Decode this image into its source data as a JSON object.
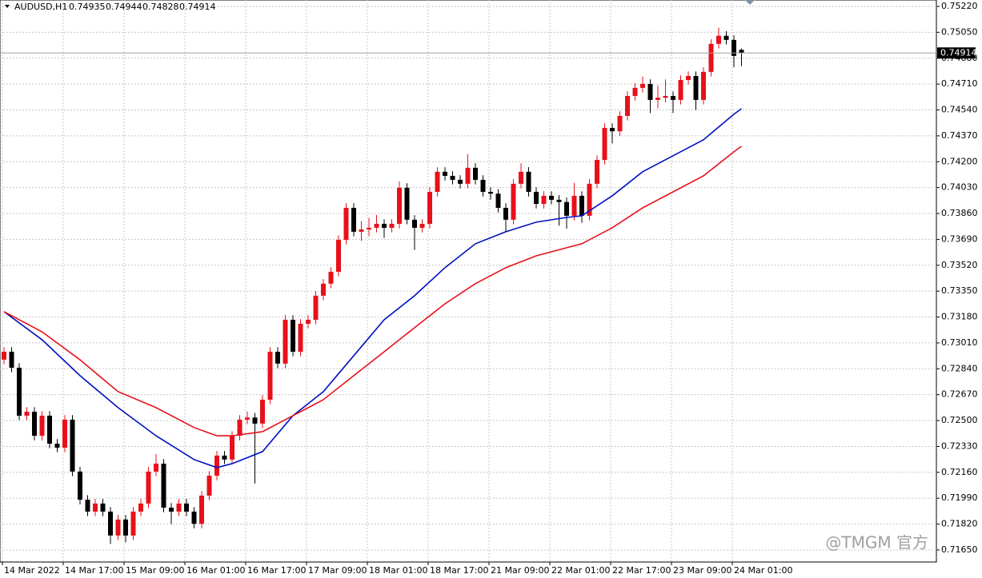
{
  "chart_data": {
    "type": "candlestick",
    "title": "AUDUSD,H1",
    "watermark": "@TMGM 官方",
    "up_color": "#e8101a",
    "down_color": "#000000",
    "grid": true,
    "ylim": [
      0.71571,
      0.75262
    ],
    "yticks": [
      {
        "value": 0.7522,
        "label": "0.75220"
      },
      {
        "value": 0.7505,
        "label": "0.75050"
      },
      {
        "value": 0.7488,
        "label": "0.74880"
      },
      {
        "value": 0.7471,
        "label": "0.74710"
      },
      {
        "value": 0.7454,
        "label": "0.74540"
      },
      {
        "value": 0.7437,
        "label": "0.74370"
      },
      {
        "value": 0.742,
        "label": "0.74200"
      },
      {
        "value": 0.7403,
        "label": "0.74030"
      },
      {
        "value": 0.7386,
        "label": "0.73860"
      },
      {
        "value": 0.7369,
        "label": "0.73690"
      },
      {
        "value": 0.7352,
        "label": "0.73520"
      },
      {
        "value": 0.7335,
        "label": "0.73350"
      },
      {
        "value": 0.7318,
        "label": "0.73180"
      },
      {
        "value": 0.7301,
        "label": "0.73010"
      },
      {
        "value": 0.7284,
        "label": "0.72840"
      },
      {
        "value": 0.7267,
        "label": "0.72670"
      },
      {
        "value": 0.725,
        "label": "0.72500"
      },
      {
        "value": 0.7233,
        "label": "0.72330"
      },
      {
        "value": 0.7216,
        "label": "0.72160"
      },
      {
        "value": 0.7199,
        "label": "0.71990"
      },
      {
        "value": 0.7182,
        "label": "0.71820"
      },
      {
        "value": 0.7165,
        "label": "0.71650"
      }
    ],
    "categories": [
      "14 Mar 2022",
      null,
      null,
      null,
      null,
      null,
      null,
      null,
      "14 Mar 17:00",
      null,
      null,
      null,
      null,
      null,
      null,
      null,
      "15 Mar 09:00",
      null,
      null,
      null,
      null,
      null,
      null,
      null,
      "16 Mar 01:00",
      null,
      null,
      null,
      null,
      null,
      null,
      null,
      "16 Mar 17:00",
      null,
      null,
      null,
      null,
      null,
      null,
      null,
      "17 Mar 09:00",
      null,
      null,
      null,
      null,
      null,
      null,
      null,
      "18 Mar 01:00",
      null,
      null,
      null,
      null,
      null,
      null,
      null,
      "18 Mar 17:00",
      null,
      null,
      null,
      null,
      null,
      null,
      null,
      "21 Mar 09:00",
      null,
      null,
      null,
      null,
      null,
      null,
      null,
      "22 Mar 01:00",
      null,
      null,
      null,
      null,
      null,
      null,
      null,
      "22 Mar 17:00",
      null,
      null,
      null,
      null,
      null,
      null,
      null,
      "23 Mar 09:00",
      null,
      null,
      null,
      null,
      null,
      null,
      null,
      "24 Mar 01:00",
      null
    ],
    "candles": [
      [
        0.729,
        0.72982,
        0.7287,
        0.72952
      ],
      [
        0.72952,
        0.72982,
        0.72817,
        0.72847
      ],
      [
        0.72847,
        0.72877,
        0.72502,
        0.72532
      ],
      [
        0.72532,
        0.72588,
        0.72502,
        0.72558
      ],
      [
        0.72558,
        0.72588,
        0.7237,
        0.724
      ],
      [
        0.724,
        0.72562,
        0.7237,
        0.72532
      ],
      [
        0.72532,
        0.72562,
        0.72318,
        0.72348
      ],
      [
        0.72348,
        0.72378,
        0.72292,
        0.72322
      ],
      [
        0.72322,
        0.72536,
        0.72292,
        0.72506
      ],
      [
        0.72506,
        0.72536,
        0.72135,
        0.72165
      ],
      [
        0.72165,
        0.72195,
        0.7195,
        0.7198
      ],
      [
        0.7198,
        0.7201,
        0.71872,
        0.71902
      ],
      [
        0.71902,
        0.71985,
        0.71872,
        0.71955
      ],
      [
        0.71955,
        0.71985,
        0.71872,
        0.71902
      ],
      [
        0.71902,
        0.71932,
        0.7169,
        0.71745
      ],
      [
        0.71745,
        0.7188,
        0.71715,
        0.7185
      ],
      [
        0.7185,
        0.7188,
        0.717,
        0.71745
      ],
      [
        0.71745,
        0.71932,
        0.71715,
        0.71902
      ],
      [
        0.71902,
        0.71985,
        0.71872,
        0.71955
      ],
      [
        0.71955,
        0.72195,
        0.71925,
        0.72165
      ],
      [
        0.72165,
        0.7228,
        0.72135,
        0.72217
      ],
      [
        0.72217,
        0.72247,
        0.71898,
        0.71928
      ],
      [
        0.71928,
        0.71958,
        0.7182,
        0.71902
      ],
      [
        0.71902,
        0.71985,
        0.71872,
        0.71955
      ],
      [
        0.71955,
        0.71985,
        0.71872,
        0.71902
      ],
      [
        0.71902,
        0.71932,
        0.71792,
        0.71822
      ],
      [
        0.71822,
        0.72037,
        0.71792,
        0.72007
      ],
      [
        0.72007,
        0.72168,
        0.71977,
        0.72138
      ],
      [
        0.72138,
        0.723,
        0.72108,
        0.7227
      ],
      [
        0.7227,
        0.723,
        0.72214,
        0.72244
      ],
      [
        0.72244,
        0.7243,
        0.72214,
        0.724
      ],
      [
        0.724,
        0.72536,
        0.7237,
        0.72506
      ],
      [
        0.72506,
        0.7256,
        0.72476,
        0.7252
      ],
      [
        0.7252,
        0.7255,
        0.72086,
        0.7248
      ],
      [
        0.7248,
        0.72667,
        0.7245,
        0.72637
      ],
      [
        0.72637,
        0.72982,
        0.72607,
        0.72952
      ],
      [
        0.72952,
        0.72982,
        0.72844,
        0.72874
      ],
      [
        0.72874,
        0.73192,
        0.72844,
        0.73162
      ],
      [
        0.73162,
        0.73192,
        0.72922,
        0.72952
      ],
      [
        0.72952,
        0.73166,
        0.72922,
        0.73136
      ],
      [
        0.73136,
        0.73192,
        0.73106,
        0.73162
      ],
      [
        0.73162,
        0.7335,
        0.73132,
        0.7332
      ],
      [
        0.7332,
        0.73429,
        0.7329,
        0.73399
      ],
      [
        0.73399,
        0.73507,
        0.73369,
        0.73477
      ],
      [
        0.73477,
        0.73717,
        0.73447,
        0.73687
      ],
      [
        0.73687,
        0.73927,
        0.73657,
        0.73897
      ],
      [
        0.73897,
        0.73927,
        0.7371,
        0.7374
      ],
      [
        0.7374,
        0.7381,
        0.7368,
        0.73755
      ],
      [
        0.73755,
        0.7383,
        0.7371,
        0.73766
      ],
      [
        0.73766,
        0.7385,
        0.73736,
        0.73792
      ],
      [
        0.73792,
        0.73822,
        0.737,
        0.73766
      ],
      [
        0.73766,
        0.73822,
        0.73736,
        0.73792
      ],
      [
        0.73792,
        0.7407,
        0.73762,
        0.74029
      ],
      [
        0.74029,
        0.74059,
        0.73789,
        0.73819
      ],
      [
        0.73819,
        0.73849,
        0.7362,
        0.73766
      ],
      [
        0.73766,
        0.73822,
        0.73736,
        0.73792
      ],
      [
        0.73792,
        0.74032,
        0.73762,
        0.74002
      ],
      [
        0.74002,
        0.74164,
        0.73972,
        0.74134
      ],
      [
        0.74134,
        0.74164,
        0.74077,
        0.74107
      ],
      [
        0.74107,
        0.74137,
        0.74051,
        0.74081
      ],
      [
        0.74081,
        0.74111,
        0.74025,
        0.74055
      ],
      [
        0.74055,
        0.7425,
        0.74025,
        0.7416
      ],
      [
        0.7416,
        0.7419,
        0.74051,
        0.74081
      ],
      [
        0.74081,
        0.74111,
        0.73972,
        0.74002
      ],
      [
        0.74002,
        0.74032,
        0.7395,
        0.7399
      ],
      [
        0.7399,
        0.7402,
        0.73867,
        0.73897
      ],
      [
        0.73897,
        0.73927,
        0.7374,
        0.73819
      ],
      [
        0.73819,
        0.74085,
        0.73789,
        0.74055
      ],
      [
        0.74055,
        0.7419,
        0.74025,
        0.74134
      ],
      [
        0.74134,
        0.74164,
        0.73972,
        0.74002
      ],
      [
        0.74002,
        0.74032,
        0.73893,
        0.73923
      ],
      [
        0.73923,
        0.74006,
        0.73893,
        0.73976
      ],
      [
        0.73976,
        0.74006,
        0.7392,
        0.7395
      ],
      [
        0.7395,
        0.7398,
        0.7378,
        0.73935
      ],
      [
        0.73935,
        0.73965,
        0.7376,
        0.73845
      ],
      [
        0.73845,
        0.7406,
        0.73815,
        0.73976
      ],
      [
        0.73976,
        0.74006,
        0.738,
        0.73845
      ],
      [
        0.73845,
        0.74085,
        0.73815,
        0.74055
      ],
      [
        0.74055,
        0.74242,
        0.74025,
        0.74212
      ],
      [
        0.74212,
        0.74452,
        0.74182,
        0.74422
      ],
      [
        0.74422,
        0.74452,
        0.7432,
        0.744
      ],
      [
        0.744,
        0.74531,
        0.7437,
        0.74501
      ],
      [
        0.74501,
        0.74662,
        0.74471,
        0.74632
      ],
      [
        0.74632,
        0.74715,
        0.74602,
        0.74685
      ],
      [
        0.74685,
        0.7476,
        0.74655,
        0.74711
      ],
      [
        0.74711,
        0.74741,
        0.7452,
        0.74606
      ],
      [
        0.74606,
        0.747,
        0.7455,
        0.7462
      ],
      [
        0.7462,
        0.7474,
        0.7459,
        0.74632
      ],
      [
        0.74632,
        0.74662,
        0.7452,
        0.74606
      ],
      [
        0.74606,
        0.74767,
        0.74576,
        0.74737
      ],
      [
        0.74737,
        0.74793,
        0.74707,
        0.74763
      ],
      [
        0.74763,
        0.74793,
        0.7454,
        0.74606
      ],
      [
        0.74606,
        0.7482,
        0.74576,
        0.7479
      ],
      [
        0.7479,
        0.75004,
        0.7476,
        0.74974
      ],
      [
        0.74974,
        0.7508,
        0.74944,
        0.75027
      ],
      [
        0.75027,
        0.75057,
        0.7497,
        0.75
      ],
      [
        0.75,
        0.7503,
        0.7482,
        0.74895
      ],
      [
        0.74935,
        0.74944,
        0.74828,
        0.74914
      ]
    ],
    "series": [
      {
        "color": "#0010c0",
        "x": [
          0,
          5,
          10,
          15,
          20,
          25,
          28,
          30,
          34,
          38,
          42,
          46,
          50,
          54,
          58,
          62,
          66,
          70,
          74,
          76,
          80,
          84,
          88,
          92,
          96,
          97
        ],
        "values": [
          0.73215,
          0.73031,
          0.72795,
          0.72585,
          0.724,
          0.72244,
          0.72191,
          0.72217,
          0.72296,
          0.72532,
          0.7269,
          0.72926,
          0.73162,
          0.7332,
          0.73504,
          0.73661,
          0.7374,
          0.73803,
          0.73834,
          0.73845,
          0.73976,
          0.74134,
          0.74239,
          0.74344,
          0.74512,
          0.74548
        ]
      },
      {
        "color": "#e8101a",
        "x": [
          0,
          5,
          10,
          15,
          20,
          25,
          28,
          30,
          34,
          38,
          42,
          46,
          50,
          54,
          58,
          62,
          66,
          70,
          74,
          76,
          80,
          84,
          88,
          92,
          96,
          97
        ],
        "values": [
          0.73215,
          0.73083,
          0.72899,
          0.7269,
          0.72585,
          0.72454,
          0.724,
          0.724,
          0.72427,
          0.72532,
          0.72637,
          0.72795,
          0.72952,
          0.7311,
          0.73267,
          0.73399,
          0.73504,
          0.73582,
          0.73635,
          0.73661,
          0.73766,
          0.73897,
          0.74002,
          0.74107,
          0.74265,
          0.74301
        ]
      }
    ]
  }
}
